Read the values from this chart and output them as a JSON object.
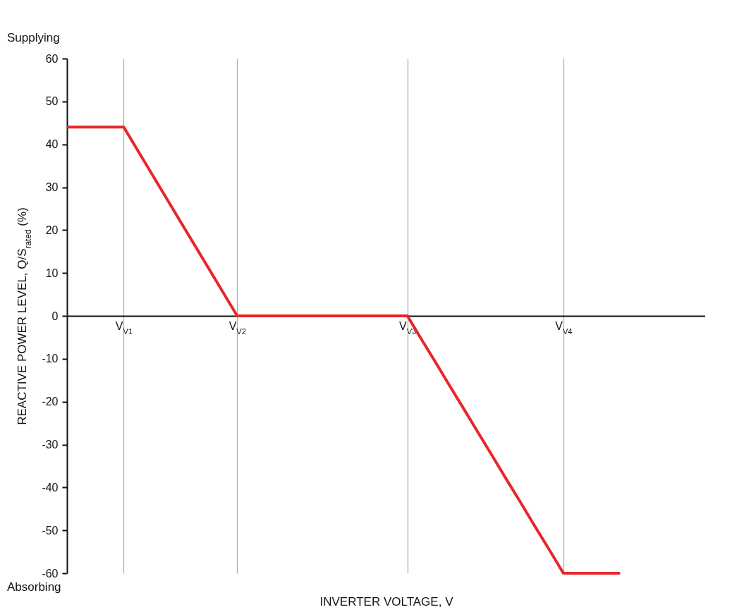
{
  "chart_data": {
    "type": "line",
    "xlabel": "INVERTER VOLTAGE, V",
    "ylabel": "REACTIVE POWER LEVEL, Q/S$_{rated}$ (%)",
    "annotations": [
      "Supplying",
      "Absorbing"
    ],
    "categories": [
      null,
      null,
      null,
      null,
      "V$_{V1}$",
      null,
      null,
      null,
      null,
      null,
      null,
      null,
      "V$_{V2}$",
      null,
      null,
      null,
      null,
      null,
      null,
      null,
      null,
      null,
      null,
      null,
      "V$_{V3}$",
      null,
      null,
      null,
      null,
      null,
      null,
      null,
      null,
      null,
      null,
      "V$_{V4}$",
      null,
      null,
      null,
      null,
      null,
      null,
      null,
      null,
      null,
      null
    ],
    "series": [
      {
        "color": "#e8262b",
        "values": [
          44,
          44,
          44,
          44,
          44,
          38.5,
          33,
          27.5,
          22,
          16.5,
          11,
          5.5,
          0,
          0,
          0,
          0,
          0,
          0,
          0,
          0,
          0,
          0,
          0,
          0,
          0,
          -5.5,
          -10.9,
          -16.4,
          -21.8,
          -27.3,
          -32.7,
          -38.2,
          -43.6,
          -49.1,
          -54.5,
          -60,
          -60,
          -60,
          -60,
          -60,
          null,
          null,
          null,
          null,
          null,
          null
        ]
      }
    ],
    "ylim": [
      -60,
      60
    ],
    "yticks": [
      -60,
      -50,
      -40,
      -30,
      -20,
      -10,
      0,
      10,
      20,
      30,
      40,
      50,
      60
    ],
    "grid": "x",
    "marker": "none",
    "line_style": "solid"
  }
}
